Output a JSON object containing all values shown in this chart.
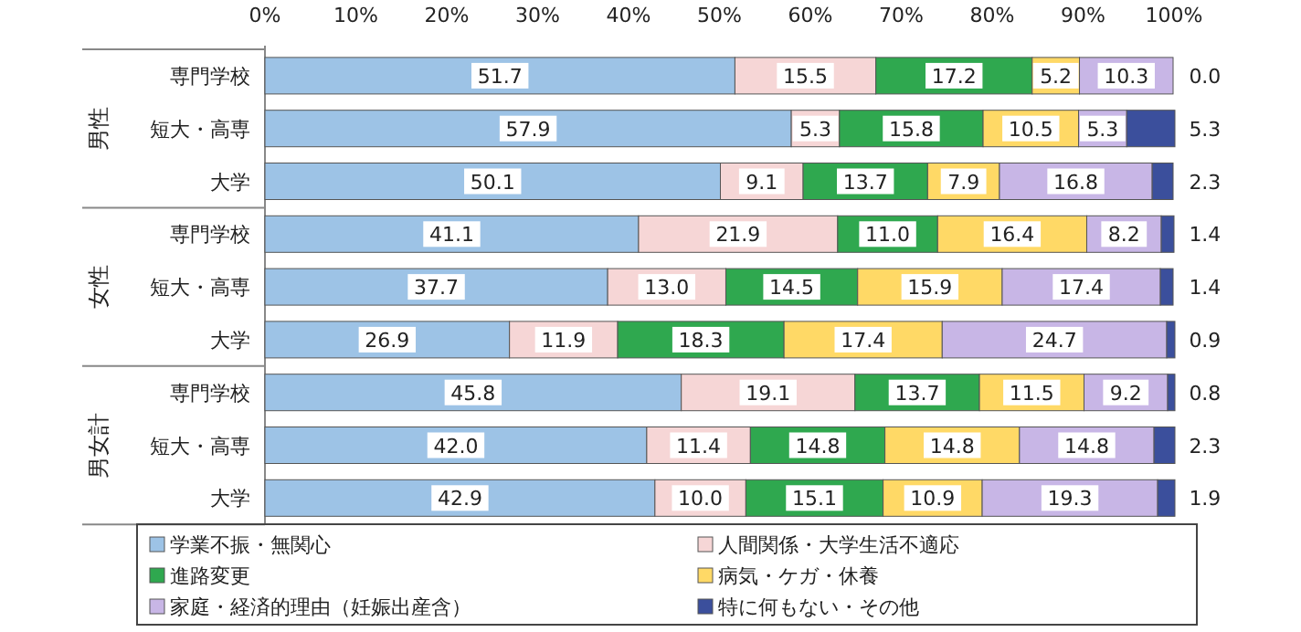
{
  "chart_data": {
    "type": "bar",
    "orientation": "horizontal",
    "stacked": true,
    "categories": [
      "専門学校",
      "短大・高専",
      "大学",
      "専門学校",
      "短大・高専",
      "大学",
      "専門学校",
      "短大・高専",
      "大学"
    ],
    "annotations": [
      "男性",
      "女性",
      "男女計"
    ],
    "series": [
      {
        "name": "学業不振・無関心",
        "color": "#9dc3e6",
        "values": [
          51.7,
          57.9,
          50.1,
          41.1,
          37.7,
          26.9,
          45.8,
          42.0,
          42.9
        ],
        "value_labels": [
          "51.7",
          "57.9",
          "50.1",
          "41.1",
          "37.7",
          "26.9",
          "45.8",
          "42.0",
          "42.9"
        ]
      },
      {
        "name": "人間関係・大学生活不適応",
        "color": "#f6d6d6",
        "values": [
          15.5,
          5.3,
          9.1,
          21.9,
          13.0,
          11.9,
          19.1,
          11.4,
          10.0
        ],
        "value_labels": [
          "15.5",
          "5.3",
          "9.1",
          "21.9",
          "13.0",
          "11.9",
          "19.1",
          "11.4",
          "10.0"
        ]
      },
      {
        "name": "進路変更",
        "color": "#2fa84f",
        "values": [
          17.2,
          15.8,
          13.7,
          11.0,
          14.5,
          18.3,
          13.7,
          14.8,
          15.1
        ],
        "value_labels": [
          "17.2",
          "15.8",
          "13.7",
          "11.0",
          "14.5",
          "18.3",
          "13.7",
          "14.8",
          "15.1"
        ]
      },
      {
        "name": "病気・ケガ・休養",
        "color": "#ffd966",
        "values": [
          5.2,
          10.5,
          7.9,
          16.4,
          15.9,
          17.4,
          11.5,
          14.8,
          10.9
        ],
        "value_labels": [
          "5.2",
          "10.5",
          "7.9",
          "16.4",
          "15.9",
          "17.4",
          "11.5",
          "14.8",
          "10.9"
        ]
      },
      {
        "name": "家庭・経済的理由（妊娠出産含）",
        "color": "#c8b6e6",
        "values": [
          10.3,
          5.3,
          16.8,
          8.2,
          17.4,
          24.7,
          9.2,
          14.8,
          19.3
        ],
        "value_labels": [
          "10.3",
          "5.3",
          "16.8",
          "8.2",
          "17.4",
          "24.7",
          "9.2",
          "14.8",
          "19.3"
        ]
      },
      {
        "name": "特に何もない・その他",
        "color": "#3b4f9c",
        "values": [
          0.0,
          5.3,
          2.3,
          1.4,
          1.4,
          0.9,
          0.8,
          2.3,
          1.9
        ],
        "value_labels": [
          "0.0",
          "5.3",
          "2.3",
          "1.4",
          "1.4",
          "0.9",
          "0.8",
          "2.3",
          "1.9"
        ]
      }
    ],
    "xlim": [
      0,
      100.1
    ],
    "xticks": [
      {
        "value": 0,
        "label": "0%"
      },
      {
        "value": 10,
        "label": "10%"
      },
      {
        "value": 20,
        "label": "20%"
      },
      {
        "value": 30,
        "label": "30%"
      },
      {
        "value": 40,
        "label": "40%"
      },
      {
        "value": 50,
        "label": "50%"
      },
      {
        "value": 60,
        "label": "60%"
      },
      {
        "value": 70,
        "label": "70%"
      },
      {
        "value": 80,
        "label": "80%"
      },
      {
        "value": 90,
        "label": "90%"
      },
      {
        "value": 100,
        "label": "100%"
      }
    ],
    "legend": "bottom"
  }
}
